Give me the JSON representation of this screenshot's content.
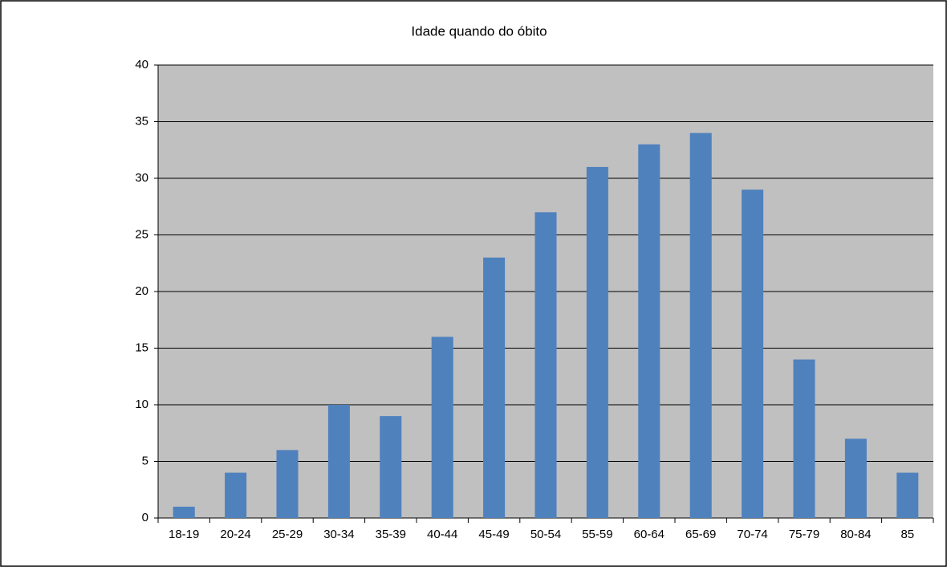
{
  "chart_data": {
    "type": "bar",
    "title": "Idade quando do óbito",
    "categories": [
      "18-19",
      "20-24",
      "25-29",
      "30-34",
      "35-39",
      "40-44",
      "45-49",
      "50-54",
      "55-59",
      "60-64",
      "65-69",
      "70-74",
      "75-79",
      "80-84",
      "85"
    ],
    "values": [
      1,
      4,
      6,
      10,
      9,
      16,
      23,
      27,
      31,
      33,
      34,
      29,
      14,
      7,
      4
    ],
    "color": "#4f81bd",
    "ylim": [
      0,
      40
    ],
    "yticks": [
      0,
      5,
      10,
      15,
      20,
      25,
      30,
      35,
      40
    ],
    "grid": true
  }
}
